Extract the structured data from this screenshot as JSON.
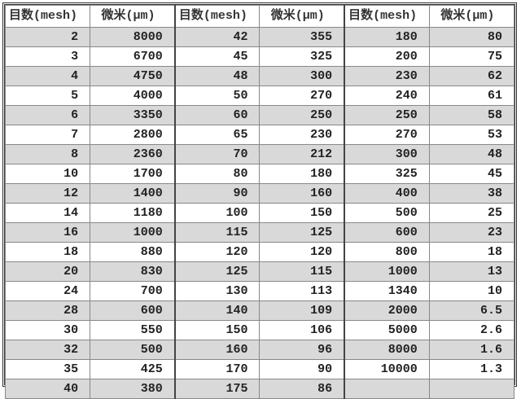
{
  "headers": [
    "目数(mesh)",
    "微米(μm)",
    "目数(mesh)",
    "微米(μm)",
    "目数(mesh)",
    "微米(μm)"
  ],
  "rows": [
    [
      "2",
      "8000",
      "42",
      "355",
      "180",
      "80"
    ],
    [
      "3",
      "6700",
      "45",
      "325",
      "200",
      "75"
    ],
    [
      "4",
      "4750",
      "48",
      "300",
      "230",
      "62"
    ],
    [
      "5",
      "4000",
      "50",
      "270",
      "240",
      "61"
    ],
    [
      "6",
      "3350",
      "60",
      "250",
      "250",
      "58"
    ],
    [
      "7",
      "2800",
      "65",
      "230",
      "270",
      "53"
    ],
    [
      "8",
      "2360",
      "70",
      "212",
      "300",
      "48"
    ],
    [
      "10",
      "1700",
      "80",
      "180",
      "325",
      "45"
    ],
    [
      "12",
      "1400",
      "90",
      "160",
      "400",
      "38"
    ],
    [
      "14",
      "1180",
      "100",
      "150",
      "500",
      "25"
    ],
    [
      "16",
      "1000",
      "115",
      "125",
      "600",
      "23"
    ],
    [
      "18",
      "880",
      "120",
      "120",
      "800",
      "18"
    ],
    [
      "20",
      "830",
      "125",
      "115",
      "1000",
      "13"
    ],
    [
      "24",
      "700",
      "130",
      "113",
      "1340",
      "10"
    ],
    [
      "28",
      "600",
      "140",
      "109",
      "2000",
      "6.5"
    ],
    [
      "30",
      "550",
      "150",
      "106",
      "5000",
      "2.6"
    ],
    [
      "32",
      "500",
      "160",
      "96",
      "8000",
      "1.6"
    ],
    [
      "35",
      "425",
      "170",
      "90",
      "10000",
      "1.3"
    ],
    [
      "40",
      "380",
      "175",
      "86",
      "",
      ""
    ]
  ],
  "colors": {
    "stripe": "#d9d9d9",
    "border": "#888888"
  }
}
